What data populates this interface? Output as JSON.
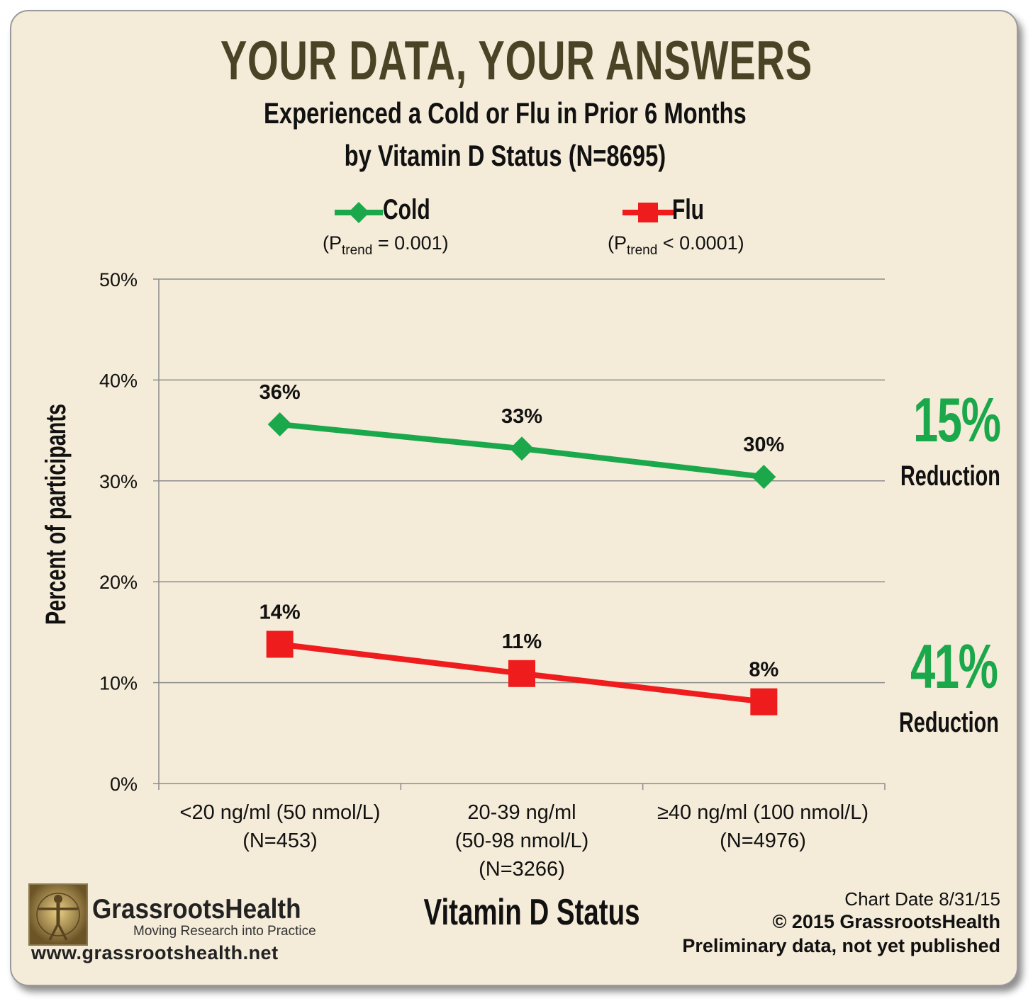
{
  "header": {
    "title": "YOUR DATA, YOUR ANSWERS",
    "subtitle_line1": "Experienced a Cold or Flu in Prior 6 Months",
    "subtitle_line2": "by Vitamin D Status (N=8695)"
  },
  "legend": {
    "cold": {
      "label": "Cold",
      "p_prefix": "(P",
      "p_sub": "trend",
      "p_suffix": " = 0.001)"
    },
    "flu": {
      "label": "Flu",
      "p_prefix": "(P",
      "p_sub": "trend",
      "p_suffix": " < 0.0001)"
    }
  },
  "reductions": {
    "cold": {
      "value": "15%",
      "label": "Reduction"
    },
    "flu": {
      "value": "41%",
      "label": "Reduction"
    }
  },
  "footer": {
    "brand": "GrassrootsHealth",
    "tagline": "Moving Research into Practice",
    "url": "www.grassrootshealth.net",
    "chart_date": "Chart Date 8/31/15",
    "copyright": "© 2015 GrassrootsHealth",
    "note": "Preliminary data, not yet published"
  },
  "colors": {
    "cold": "#1aa84b",
    "flu": "#ee1c1c",
    "background": "#f4ebd8",
    "title": "#4b4325"
  },
  "chart_data": {
    "type": "line",
    "ylabel": "Percent of participants",
    "xlabel": "Vitamin D Status",
    "ylim": [
      0,
      50
    ],
    "yticks": [
      "0%",
      "10%",
      "20%",
      "30%",
      "40%",
      "50%"
    ],
    "grid": true,
    "categories": [
      [
        "<20 ng/ml (50 nmol/L)",
        "(N=453)"
      ],
      [
        "20-39 ng/ml",
        "(50-98 nmol/L)",
        "(N=3266)"
      ],
      [
        "≥40 ng/ml (100 nmol/L)",
        "(N=4976)"
      ]
    ],
    "series": [
      {
        "name": "Cold",
        "values": [
          35.6,
          33.2,
          30.4
        ],
        "labels": [
          "36%",
          "33%",
          "30%"
        ],
        "marker": "diamond",
        "color": "#1aa84b"
      },
      {
        "name": "Flu",
        "values": [
          13.8,
          10.9,
          8.1
        ],
        "labels": [
          "14%",
          "11%",
          "8%"
        ],
        "marker": "square",
        "color": "#ee1c1c"
      }
    ]
  }
}
